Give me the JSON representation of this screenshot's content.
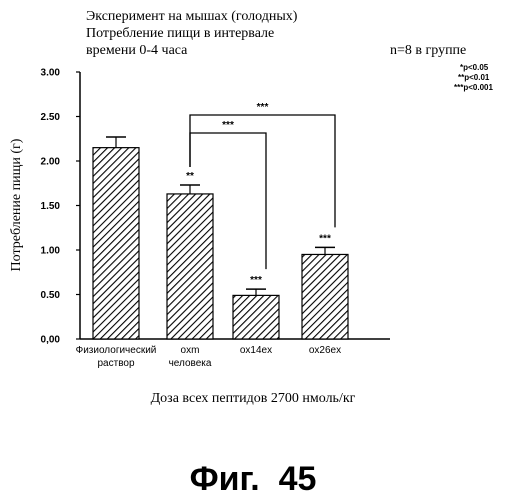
{
  "header": {
    "title_lines": [
      "Эксперимент на мышах (голодных)",
      "Потребление пищи в интервале",
      "времени 0-4 часа"
    ],
    "group_size": "n=8 в группе"
  },
  "significance_legend": [
    "*p<0.05",
    "**p<0.01",
    "***p<0.001"
  ],
  "figure_caption": "Фиг.  45",
  "chart_data": {
    "type": "bar",
    "ylabel": "Потребление пищи (г)",
    "xlabel": "Доза всех пептидов 2700 нмоль/кг",
    "ylim": [
      0,
      3.0
    ],
    "yticks": [
      "0,00",
      "0.50",
      "1.00",
      "1.50",
      "2.00",
      "2.50",
      "3.00"
    ],
    "categories": [
      [
        "Физиологический",
        "раствор"
      ],
      [
        "oxm",
        "человека"
      ],
      [
        "ox14ex"
      ],
      [
        "ox26ex"
      ]
    ],
    "values": [
      2.15,
      1.63,
      0.49,
      0.95
    ],
    "errors": [
      0.12,
      0.1,
      0.07,
      0.08
    ],
    "significance": [
      "",
      "**",
      "***",
      "***"
    ],
    "comparisons": [
      {
        "from": 1,
        "to": 2,
        "label": "***"
      },
      {
        "from": 1,
        "to": 3,
        "label": "***"
      }
    ]
  }
}
